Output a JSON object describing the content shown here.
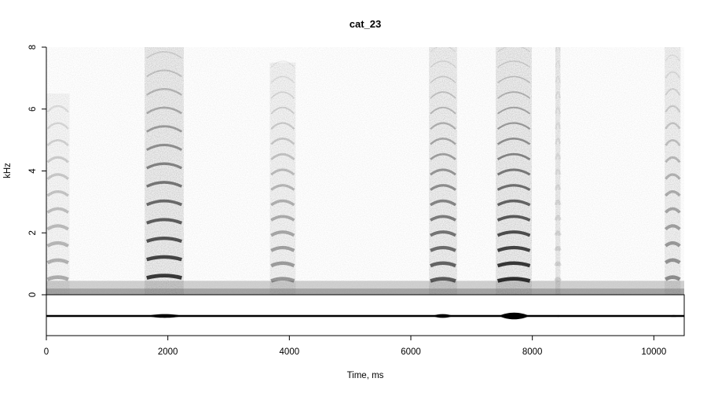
{
  "chart_data": {
    "type": "heatmap",
    "subtype": "spectrogram-with-waveform",
    "title": "cat_23",
    "xlabel": "Time, ms",
    "ylabel": "kHz",
    "xlim": [
      0,
      10500
    ],
    "ylim": [
      0,
      8
    ],
    "xticks": [
      "0",
      "2000",
      "4000",
      "6000",
      "8000",
      "10000"
    ],
    "yticks": [
      "0",
      "2",
      "4",
      "6",
      "8"
    ],
    "grid": false,
    "colormap": "grayscale",
    "colors": {
      "ink": "#000000",
      "background": "#ffffff"
    },
    "sound_events": [
      {
        "start": 0,
        "end": 380,
        "f0_khz": 0.55,
        "harmonic_intensity": 0.35,
        "broadband": 0.25,
        "top_khz": 6.5
      },
      {
        "start": 1620,
        "end": 2260,
        "f0_khz": 0.6,
        "harmonic_intensity": 0.95,
        "broadband": 0.55,
        "top_khz": 8
      },
      {
        "start": 3680,
        "end": 4100,
        "f0_khz": 0.5,
        "harmonic_intensity": 0.45,
        "broadband": 0.35,
        "top_khz": 7.5
      },
      {
        "start": 6300,
        "end": 6760,
        "f0_khz": 0.5,
        "harmonic_intensity": 0.75,
        "broadband": 0.45,
        "top_khz": 8
      },
      {
        "start": 7400,
        "end": 7990,
        "f0_khz": 0.5,
        "harmonic_intensity": 1.0,
        "broadband": 0.55,
        "top_khz": 8
      },
      {
        "start": 8380,
        "end": 8460,
        "f0_khz": 0.5,
        "harmonic_intensity": 0.15,
        "broadband": 0.5,
        "top_khz": 8
      },
      {
        "start": 10180,
        "end": 10440,
        "f0_khz": 0.55,
        "harmonic_intensity": 0.5,
        "broadband": 0.4,
        "top_khz": 8
      }
    ],
    "waveform_bursts": [
      {
        "start": 1650,
        "end": 2250,
        "amplitude": 0.12
      },
      {
        "start": 3700,
        "end": 4100,
        "amplitude": 0.05
      },
      {
        "start": 6350,
        "end": 6700,
        "amplitude": 0.12
      },
      {
        "start": 7450,
        "end": 7950,
        "amplitude": 0.22
      },
      {
        "start": 8400,
        "end": 8450,
        "amplitude": 0.06
      },
      {
        "start": 10200,
        "end": 10450,
        "amplitude": 0.06
      }
    ]
  }
}
